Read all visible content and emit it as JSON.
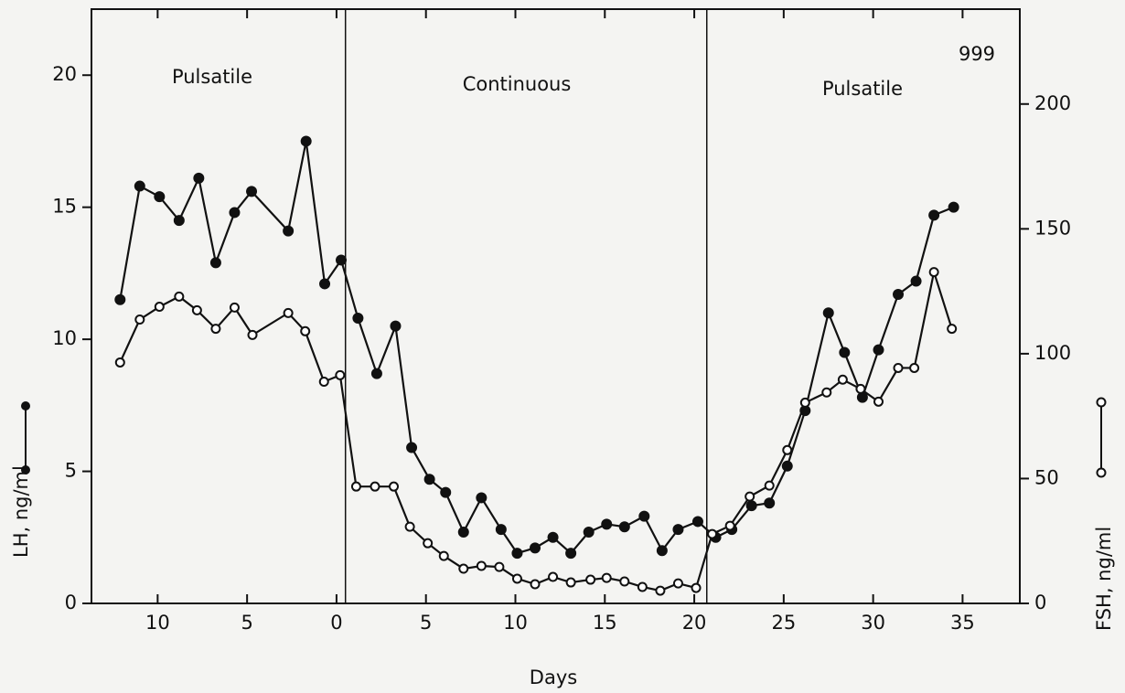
{
  "chart_data": {
    "type": "line",
    "annotations": [
      "Pulsatile",
      "Continuous",
      "Pulsatile",
      "999"
    ],
    "x_label": "Days",
    "y_label": "LH, ng/ml",
    "y2_label": "FSH, ng/ml",
    "phase_boundaries": [
      0.5,
      20.7
    ],
    "xlim": [
      -13.7,
      38.2
    ],
    "xticks": [
      {
        "value": -10,
        "label": "10"
      },
      {
        "value": -5,
        "label": "5"
      },
      0,
      5,
      10,
      15,
      20,
      25,
      30,
      35
    ],
    "ylim": [
      0,
      22.5
    ],
    "yticks": [
      0,
      5,
      10,
      15,
      20
    ],
    "y2lim": [
      0,
      238
    ],
    "y2ticks": [
      0,
      50,
      100,
      150,
      200
    ],
    "series": [
      {
        "color": "#111111",
        "marker": "filled",
        "x": [
          -12.1,
          -11,
          -9.9,
          -8.8,
          -7.7,
          -6.75,
          -5.7,
          -4.75,
          -2.7,
          -1.7,
          -0.66,
          0.26,
          1.2,
          2.25,
          3.3,
          4.2,
          5.2,
          6.1,
          7.1,
          8.1,
          9.2,
          10.1,
          11.1,
          12.1,
          13.1,
          14.1,
          15.1,
          16.1,
          17.2,
          18.2,
          19.1,
          20.2,
          21.2,
          22.1,
          23.2,
          24.2,
          25.2,
          26.2,
          27.5,
          28.4,
          29.4,
          30.3,
          31.4,
          32.4,
          33.4,
          34.5
        ],
        "values": [
          11.5,
          15.8,
          15.4,
          14.5,
          16.1,
          12.9,
          14.8,
          15.6,
          14.1,
          17.5,
          12.1,
          13.0,
          10.8,
          8.7,
          10.5,
          5.9,
          4.7,
          4.2,
          2.7,
          4.0,
          2.8,
          1.9,
          2.1,
          2.5,
          1.9,
          2.7,
          3.0,
          2.9,
          3.3,
          2.0,
          2.8,
          3.1,
          2.5,
          2.8,
          3.7,
          3.8,
          5.2,
          7.3,
          11.0,
          9.5,
          7.8,
          9.6,
          11.7,
          12.2,
          14.7,
          15.0
        ]
      },
      {
        "color": "#111111",
        "marker": "open",
        "axis": "y2",
        "x": [
          -12.1,
          -11,
          -9.9,
          -8.8,
          -7.8,
          -6.75,
          -5.7,
          -4.7,
          -2.7,
          -1.75,
          -0.7,
          0.2,
          1.1,
          2.15,
          3.2,
          4.1,
          5.1,
          6.0,
          7.1,
          8.1,
          9.1,
          10.1,
          11.1,
          12.1,
          13.1,
          14.2,
          15.1,
          16.1,
          17.1,
          18.1,
          19.1,
          20.1,
          21.0,
          22.0,
          23.1,
          24.2,
          25.2,
          26.2,
          27.4,
          28.3,
          29.3,
          30.3,
          31.4,
          32.3,
          33.4,
          34.4
        ],
        "values": [
          96.5,
          113.7,
          118.8,
          122.9,
          117.4,
          110,
          118.5,
          107.5,
          116.3,
          109,
          88.8,
          91.4,
          46.8,
          46.8,
          46.8,
          30.7,
          24.1,
          19,
          13.9,
          15,
          14.6,
          9.9,
          7.7,
          10.6,
          8.4,
          9.5,
          10.2,
          8.8,
          6.6,
          5.1,
          8.0,
          6.2,
          27.8,
          31.1,
          42.8,
          47.2,
          61.4,
          80.4,
          84.5,
          89.6,
          85.9,
          80.8,
          94.3,
          94.3,
          132.7,
          110
        ]
      }
    ]
  }
}
